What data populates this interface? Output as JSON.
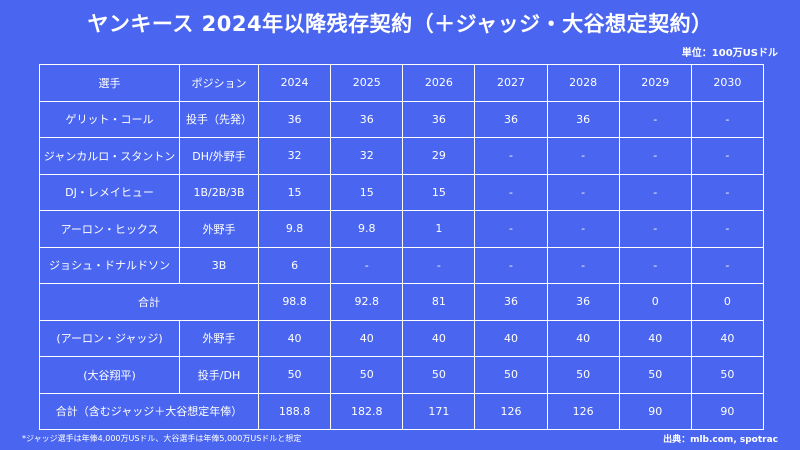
{
  "title": "ヤンキース 2024年以降残存契約（＋ジャッジ・大谷想定契約）",
  "unit_note": "単位：100万USドル",
  "table": {
    "headers": [
      "選手",
      "ポジション",
      "2024",
      "2025",
      "2026",
      "2027",
      "2028",
      "2029",
      "2030"
    ],
    "rows": [
      {
        "player": "ゲリット・コール",
        "position": "投手（先発）",
        "values": [
          "36",
          "36",
          "36",
          "36",
          "36",
          "-",
          "-"
        ]
      },
      {
        "player": "ジャンカルロ・スタントン",
        "position": "DH/外野手",
        "values": [
          "32",
          "32",
          "29",
          "-",
          "-",
          "-",
          "-"
        ]
      },
      {
        "player": "DJ・レメイヒュー",
        "position": "1B/2B/3B",
        "values": [
          "15",
          "15",
          "15",
          "-",
          "-",
          "-",
          "-"
        ]
      },
      {
        "player": "アーロン・ヒックス",
        "position": "外野手",
        "values": [
          "9.8",
          "9.8",
          "1",
          "-",
          "-",
          "-",
          "-"
        ]
      },
      {
        "player": "ジョシュ・ドナルドソン",
        "position": "3B",
        "values": [
          "6",
          "-",
          "-",
          "-",
          "-",
          "-",
          "-"
        ]
      }
    ],
    "subtotal": {
      "label": "合計",
      "values": [
        "98.8",
        "92.8",
        "81",
        "36",
        "36",
        "0",
        "0"
      ]
    },
    "extra_rows": [
      {
        "player": "(アーロン・ジャッジ)",
        "position": "外野手",
        "values": [
          "40",
          "40",
          "40",
          "40",
          "40",
          "40",
          "40"
        ]
      },
      {
        "player": "(大谷翔平)",
        "position": "投手/DH",
        "values": [
          "50",
          "50",
          "50",
          "50",
          "50",
          "50",
          "50"
        ]
      }
    ],
    "grand_total": {
      "label": "合計（含むジャッジ＋大谷想定年俸）",
      "values": [
        "188.8",
        "182.8",
        "171",
        "126",
        "126",
        "90",
        "90"
      ]
    }
  },
  "footnote": "*ジャッジ選手は年俸4,000万USドル、大谷選手は年俸5,000万USドルと想定",
  "source": "出典：mlb.com, spotrac"
}
